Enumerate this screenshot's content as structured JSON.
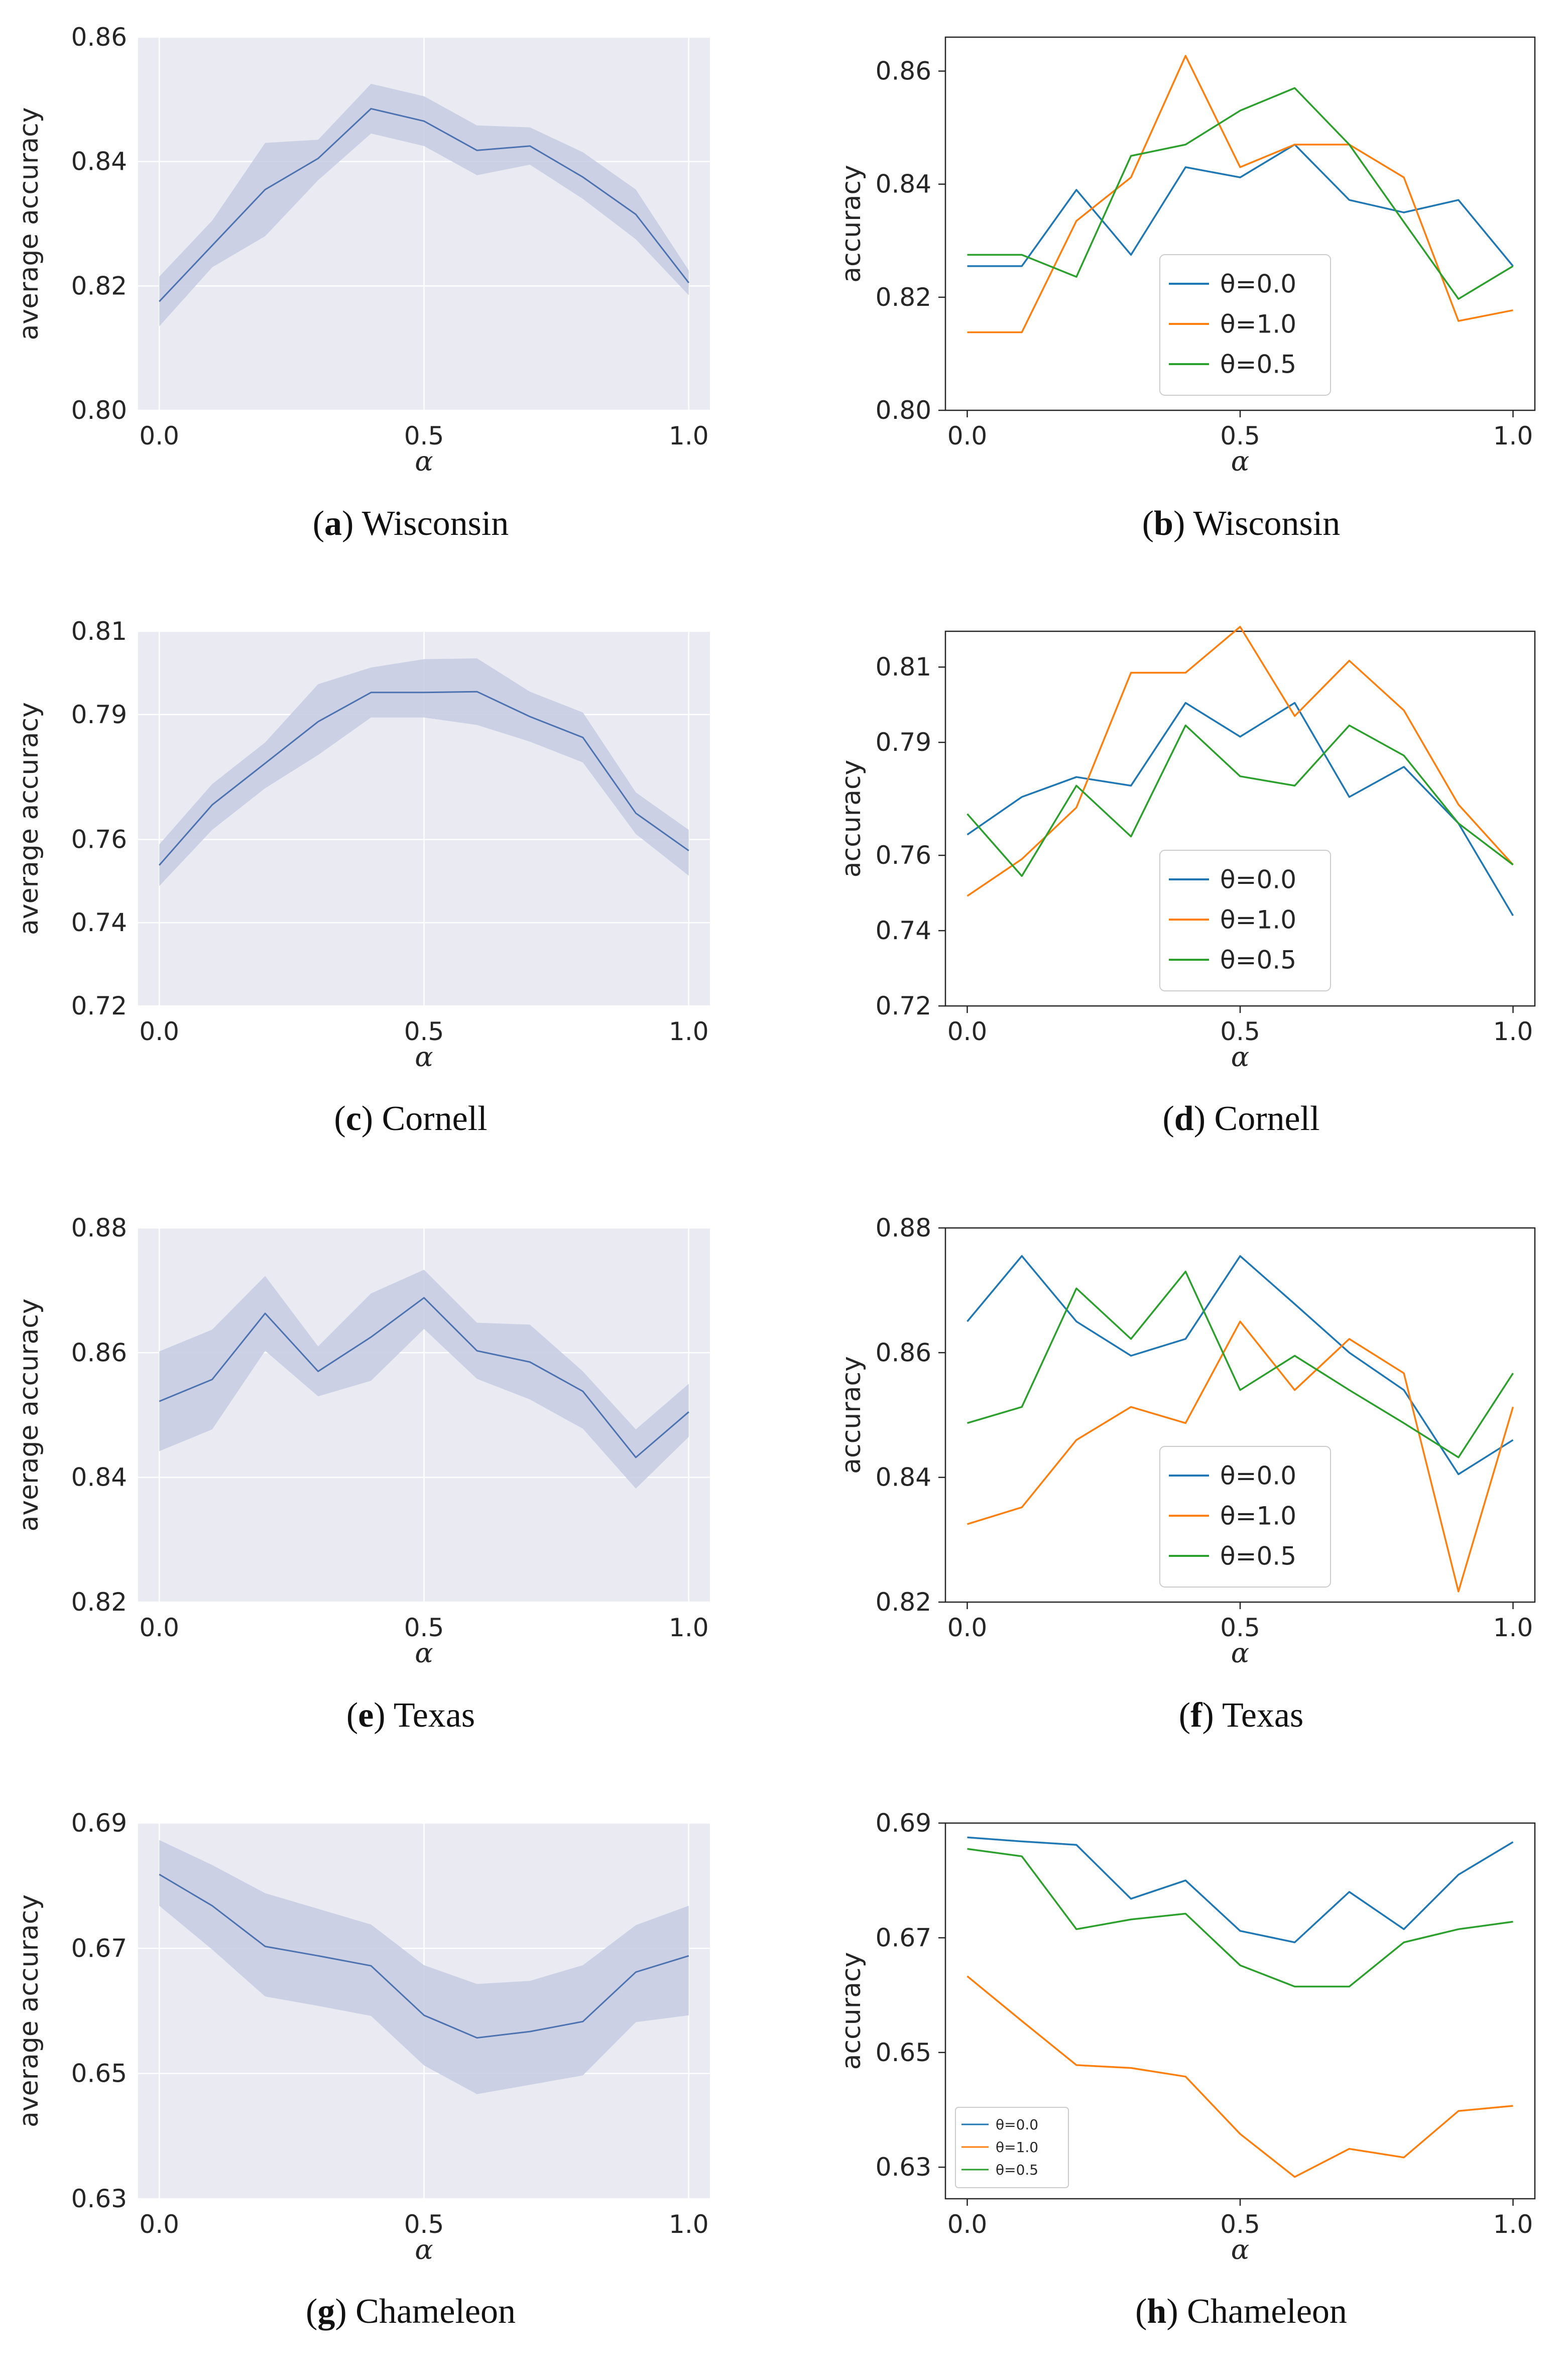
{
  "colors": {
    "seaborn_bg": "#e9eaf2",
    "seaborn_line": "#4c72b0",
    "seaborn_band": "#c5cbe3",
    "grid_white": "#ffffff",
    "theta_0_0": "#1f77b4",
    "theta_1_0": "#ff7f0e",
    "theta_0_5": "#2ca02c",
    "axis_dark": "#262626"
  },
  "chart_data": [
    {
      "id": "a",
      "type": "line",
      "style": "seaborn",
      "caption_letter": "a",
      "caption_name": "Wisconsin",
      "xlabel": "α",
      "ylabel": "average accuracy",
      "ylim": [
        0.8,
        0.86
      ],
      "xlim": [
        -0.04,
        1.04
      ],
      "yticks": [
        0.8,
        0.82,
        0.84,
        0.86
      ],
      "ytick_labels": [
        "0.80",
        "0.82",
        "0.84",
        "0.86"
      ],
      "xticks": [
        0.0,
        0.5,
        1.0
      ],
      "xtick_labels": [
        "0.0",
        "0.5",
        "1.0"
      ],
      "x": [
        0.0,
        0.1,
        0.2,
        0.3,
        0.4,
        0.5,
        0.6,
        0.7,
        0.8,
        0.9,
        1.0
      ],
      "series": [
        {
          "name": "mean",
          "color": "#4c72b0",
          "values": [
            0.8175,
            0.8265,
            0.8355,
            0.8405,
            0.8485,
            0.8465,
            0.8418,
            0.8425,
            0.8375,
            0.8315,
            0.8205
          ],
          "lower": [
            0.8135,
            0.823,
            0.828,
            0.837,
            0.8445,
            0.8425,
            0.8378,
            0.8395,
            0.834,
            0.8275,
            0.8185
          ],
          "upper": [
            0.8215,
            0.8305,
            0.843,
            0.8435,
            0.8525,
            0.8505,
            0.8458,
            0.8455,
            0.8415,
            0.8355,
            0.8225
          ]
        }
      ]
    },
    {
      "id": "b",
      "type": "line",
      "style": "plain",
      "caption_letter": "b",
      "caption_name": "Wisconsin",
      "xlabel": "α",
      "ylabel": "accuracy",
      "ylim": [
        0.8,
        0.866
      ],
      "xlim": [
        -0.04,
        1.04
      ],
      "yticks": [
        0.8,
        0.82,
        0.84,
        0.86
      ],
      "ytick_labels": [
        "0.80",
        "0.82",
        "0.84",
        "0.86"
      ],
      "xticks": [
        0.0,
        0.5,
        1.0
      ],
      "xtick_labels": [
        "0.0",
        "0.5",
        "1.0"
      ],
      "legend": {
        "position": "lower-center",
        "size": "large"
      },
      "x": [
        0.0,
        0.1,
        0.2,
        0.3,
        0.4,
        0.5,
        0.6,
        0.7,
        0.8,
        0.9,
        1.0
      ],
      "series": [
        {
          "name": "θ=0.0",
          "color": "#1f77b4",
          "values": [
            0.8255,
            0.8255,
            0.839,
            0.8275,
            0.843,
            0.8412,
            0.847,
            0.8372,
            0.835,
            0.8372,
            0.8255
          ]
        },
        {
          "name": "θ=1.0",
          "color": "#ff7f0e",
          "values": [
            0.8138,
            0.8138,
            0.8335,
            0.8412,
            0.8627,
            0.843,
            0.847,
            0.847,
            0.8412,
            0.8158,
            0.8177
          ]
        },
        {
          "name": "θ=0.5",
          "color": "#2ca02c",
          "values": [
            0.8275,
            0.8275,
            0.8236,
            0.845,
            0.847,
            0.853,
            0.857,
            0.847,
            0.8333,
            0.8197,
            0.8255
          ]
        }
      ]
    },
    {
      "id": "c",
      "type": "line",
      "style": "seaborn",
      "caption_letter": "c",
      "caption_name": "Cornell",
      "xlabel": "α",
      "ylabel": "average accuracy",
      "ylim": [
        0.72,
        0.81
      ],
      "xlim": [
        -0.04,
        1.04
      ],
      "yticks": [
        0.72,
        0.74,
        0.76,
        0.79,
        0.81
      ],
      "ytick_labels": [
        "0.72",
        "0.74",
        "0.76",
        "0.79",
        "0.81"
      ],
      "xticks": [
        0.0,
        0.5,
        1.0
      ],
      "xtick_labels": [
        "0.0",
        "0.5",
        "1.0"
      ],
      "x": [
        0.0,
        0.1,
        0.2,
        0.3,
        0.4,
        0.5,
        0.6,
        0.7,
        0.8,
        0.9,
        1.0
      ],
      "series": [
        {
          "name": "mean",
          "color": "#4c72b0",
          "values": [
            0.7538,
            0.7683,
            0.7783,
            0.7883,
            0.7953,
            0.7953,
            0.7955,
            0.7895,
            0.7845,
            0.7663,
            0.7573
          ],
          "lower": [
            0.7488,
            0.7623,
            0.7723,
            0.7803,
            0.7893,
            0.7893,
            0.7875,
            0.7835,
            0.7785,
            0.7613,
            0.7513
          ],
          "upper": [
            0.7588,
            0.7733,
            0.7833,
            0.7973,
            0.8013,
            0.8033,
            0.8035,
            0.7955,
            0.7905,
            0.7713,
            0.7623
          ]
        }
      ]
    },
    {
      "id": "d",
      "type": "line",
      "style": "plain",
      "caption_letter": "d",
      "caption_name": "Cornell",
      "xlabel": "α",
      "ylabel": "accuracy",
      "ylim": [
        0.72,
        0.8195
      ],
      "xlim": [
        -0.04,
        1.04
      ],
      "yticks": [
        0.72,
        0.74,
        0.76,
        0.79,
        0.81
      ],
      "ytick_labels": [
        "0.72",
        "0.74",
        "0.76",
        "0.79",
        "0.81"
      ],
      "xticks": [
        0.0,
        0.5,
        1.0
      ],
      "xtick_labels": [
        "0.0",
        "0.5",
        "1.0"
      ],
      "legend": {
        "position": "lower-center",
        "size": "large"
      },
      "x": [
        0.0,
        0.1,
        0.2,
        0.3,
        0.4,
        0.5,
        0.6,
        0.7,
        0.8,
        0.9,
        1.0
      ],
      "series": [
        {
          "name": "θ=0.0",
          "color": "#1f77b4",
          "values": [
            0.7655,
            0.7755,
            0.7808,
            0.7785,
            0.8005,
            0.7915,
            0.8005,
            0.7755,
            0.7835,
            0.7685,
            0.744
          ]
        },
        {
          "name": "θ=1.0",
          "color": "#ff7f0e",
          "values": [
            0.7492,
            0.759,
            0.7727,
            0.8085,
            0.8085,
            0.8207,
            0.797,
            0.8117,
            0.7985,
            0.7735,
            0.7575
          ]
        },
        {
          "name": "θ=0.5",
          "color": "#2ca02c",
          "values": [
            0.771,
            0.7545,
            0.7785,
            0.765,
            0.7945,
            0.781,
            0.7785,
            0.7945,
            0.7865,
            0.7685,
            0.7575
          ]
        }
      ]
    },
    {
      "id": "e",
      "type": "line",
      "style": "seaborn",
      "caption_letter": "e",
      "caption_name": "Texas",
      "xlabel": "α",
      "ylabel": "average accuracy",
      "ylim": [
        0.82,
        0.88
      ],
      "xlim": [
        -0.04,
        1.04
      ],
      "yticks": [
        0.82,
        0.84,
        0.86,
        0.88
      ],
      "ytick_labels": [
        "0.82",
        "0.84",
        "0.86",
        "0.88"
      ],
      "xticks": [
        0.0,
        0.5,
        1.0
      ],
      "xtick_labels": [
        "0.0",
        "0.5",
        "1.0"
      ],
      "x": [
        0.0,
        0.1,
        0.2,
        0.3,
        0.4,
        0.5,
        0.6,
        0.7,
        0.8,
        0.9,
        1.0
      ],
      "series": [
        {
          "name": "mean",
          "color": "#4c72b0",
          "values": [
            0.8522,
            0.8557,
            0.8663,
            0.857,
            0.8625,
            0.8688,
            0.8603,
            0.8585,
            0.8538,
            0.8432,
            0.8505
          ],
          "lower": [
            0.8442,
            0.8477,
            0.8603,
            0.853,
            0.8555,
            0.8638,
            0.8558,
            0.8525,
            0.8478,
            0.8382,
            0.8465
          ],
          "upper": [
            0.8602,
            0.8637,
            0.8723,
            0.861,
            0.8695,
            0.8733,
            0.8648,
            0.8645,
            0.857,
            0.8477,
            0.855
          ]
        }
      ]
    },
    {
      "id": "f",
      "type": "line",
      "style": "plain",
      "caption_letter": "f",
      "caption_name": "Texas",
      "xlabel": "α",
      "ylabel": "accuracy",
      "ylim": [
        0.82,
        0.88
      ],
      "xlim": [
        -0.04,
        1.04
      ],
      "yticks": [
        0.82,
        0.84,
        0.86,
        0.88
      ],
      "ytick_labels": [
        "0.82",
        "0.84",
        "0.86",
        "0.88"
      ],
      "xticks": [
        0.0,
        0.5,
        1.0
      ],
      "xtick_labels": [
        "0.0",
        "0.5",
        "1.0"
      ],
      "legend": {
        "position": "lower-center",
        "size": "large"
      },
      "x": [
        0.0,
        0.1,
        0.2,
        0.3,
        0.4,
        0.5,
        0.6,
        0.7,
        0.8,
        0.9,
        1.0
      ],
      "series": [
        {
          "name": "θ=0.0",
          "color": "#1f77b4",
          "values": [
            0.865,
            0.8755,
            0.865,
            0.8595,
            0.8622,
            0.8755,
            0.8678,
            0.86,
            0.854,
            0.8405,
            0.846
          ]
        },
        {
          "name": "θ=1.0",
          "color": "#ff7f0e",
          "values": [
            0.8325,
            0.8352,
            0.846,
            0.8513,
            0.8487,
            0.865,
            0.854,
            0.8622,
            0.8567,
            0.8217,
            0.8513
          ]
        },
        {
          "name": "θ=0.5",
          "color": "#2ca02c",
          "values": [
            0.8487,
            0.8513,
            0.8703,
            0.8622,
            0.873,
            0.854,
            0.8595,
            0.854,
            0.8487,
            0.8432,
            0.8567
          ]
        }
      ]
    },
    {
      "id": "g",
      "type": "line",
      "style": "seaborn",
      "caption_letter": "g",
      "caption_name": "Chameleon",
      "xlabel": "α",
      "ylabel": "average accuracy",
      "ylim": [
        0.63,
        0.69
      ],
      "xlim": [
        -0.04,
        1.04
      ],
      "yticks": [
        0.63,
        0.65,
        0.67,
        0.69
      ],
      "ytick_labels": [
        "0.63",
        "0.65",
        "0.67",
        "0.69"
      ],
      "xticks": [
        0.0,
        0.5,
        1.0
      ],
      "xtick_labels": [
        "0.0",
        "0.5",
        "1.0"
      ],
      "x": [
        0.0,
        0.1,
        0.2,
        0.3,
        0.4,
        0.5,
        0.6,
        0.7,
        0.8,
        0.9,
        1.0
      ],
      "series": [
        {
          "name": "mean",
          "color": "#4c72b0",
          "values": [
            0.6818,
            0.6768,
            0.6703,
            0.6688,
            0.6672,
            0.6593,
            0.6557,
            0.6567,
            0.6583,
            0.6662,
            0.6688
          ],
          "lower": [
            0.6768,
            0.6698,
            0.6623,
            0.6608,
            0.6592,
            0.6513,
            0.6467,
            0.6482,
            0.6497,
            0.6582,
            0.6593
          ],
          "upper": [
            0.6873,
            0.6833,
            0.6788,
            0.6763,
            0.6738,
            0.6673,
            0.6643,
            0.6648,
            0.6673,
            0.6737,
            0.6768
          ]
        }
      ]
    },
    {
      "id": "h",
      "type": "line",
      "style": "plain",
      "caption_letter": "h",
      "caption_name": "Chameleon",
      "xlabel": "α",
      "ylabel": "accuracy",
      "ylim": [
        0.6245,
        0.69
      ],
      "xlim": [
        -0.04,
        1.04
      ],
      "yticks": [
        0.63,
        0.65,
        0.67,
        0.69
      ],
      "ytick_labels": [
        "0.63",
        "0.65",
        "0.67",
        "0.69"
      ],
      "xticks": [
        0.0,
        0.5,
        1.0
      ],
      "xtick_labels": [
        "0.0",
        "0.5",
        "1.0"
      ],
      "legend": {
        "position": "lower-left",
        "size": "small"
      },
      "x": [
        0.0,
        0.1,
        0.2,
        0.3,
        0.4,
        0.5,
        0.6,
        0.7,
        0.8,
        0.9,
        1.0
      ],
      "series": [
        {
          "name": "θ=0.0",
          "color": "#1f77b4",
          "values": [
            0.6875,
            0.6868,
            0.6862,
            0.6768,
            0.68,
            0.6712,
            0.6692,
            0.678,
            0.6715,
            0.681,
            0.6867
          ]
        },
        {
          "name": "θ=1.0",
          "color": "#ff7f0e",
          "values": [
            0.6633,
            0.6555,
            0.6478,
            0.6473,
            0.6458,
            0.6358,
            0.6283,
            0.6332,
            0.6317,
            0.6398,
            0.6407
          ]
        },
        {
          "name": "θ=0.5",
          "color": "#2ca02c",
          "values": [
            0.6855,
            0.6842,
            0.6715,
            0.6732,
            0.6742,
            0.6652,
            0.6615,
            0.6615,
            0.6692,
            0.6715,
            0.6728
          ]
        }
      ]
    }
  ]
}
